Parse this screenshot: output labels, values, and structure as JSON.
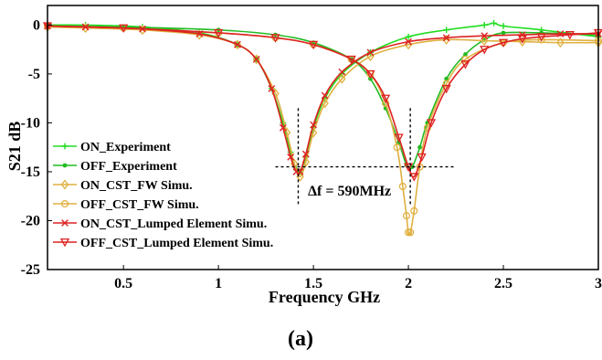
{
  "chart_data": {
    "type": "line",
    "xlabel": "Frequency GHz",
    "ylabel": "S21 dB",
    "xlim": [
      0.1,
      3.0
    ],
    "ylim": [
      -25,
      2
    ],
    "xticks": [
      "0.5",
      "1",
      "1.5",
      "2",
      "2.5",
      "3"
    ],
    "xtick_values": [
      0.5,
      1,
      1.5,
      2,
      2.5,
      3
    ],
    "yticks": [
      "0",
      "-5",
      "-10",
      "-15",
      "-20",
      "-25"
    ],
    "ytick_values": [
      0,
      -5,
      -10,
      -15,
      -20,
      -25
    ],
    "grid": false,
    "legend_position": "lower-left",
    "annotation": "Δf = 590MHz",
    "caption": "(a)",
    "series": [
      {
        "name": "ON_Experiment",
        "color": "#22dd22",
        "marker": "plus",
        "x": [
          0.1,
          0.3,
          0.6,
          0.9,
          1.1,
          1.2,
          1.28,
          1.34,
          1.38,
          1.41,
          1.43,
          1.46,
          1.5,
          1.56,
          1.65,
          1.8,
          2.0,
          2.2,
          2.4,
          2.45,
          2.5,
          2.7,
          3.0
        ],
        "y": [
          0.0,
          0.0,
          -0.2,
          -0.8,
          -2.0,
          -3.5,
          -6.5,
          -10.0,
          -13.0,
          -14.8,
          -15.0,
          -13.5,
          -10.5,
          -7.5,
          -5.0,
          -2.8,
          -1.2,
          -0.5,
          0.0,
          0.2,
          -0.1,
          -0.5,
          -1.2
        ]
      },
      {
        "name": "OFF_Experiment",
        "color": "#22bb22",
        "marker": "dot",
        "x": [
          0.1,
          0.5,
          1.0,
          1.3,
          1.5,
          1.7,
          1.8,
          1.88,
          1.95,
          1.99,
          2.02,
          2.06,
          2.1,
          2.2,
          2.3,
          2.4,
          2.5,
          2.7,
          3.0
        ],
        "y": [
          -0.1,
          -0.2,
          -0.5,
          -1.0,
          -1.8,
          -3.5,
          -5.5,
          -8.5,
          -12.0,
          -14.3,
          -14.5,
          -12.5,
          -10.0,
          -5.5,
          -3.0,
          -1.5,
          -0.8,
          -0.8,
          -1.0
        ]
      },
      {
        "name": "ON_CST_FW Simu.",
        "color": "#e0b040",
        "marker": "diamond",
        "x": [
          0.1,
          0.3,
          0.6,
          0.9,
          1.1,
          1.2,
          1.3,
          1.36,
          1.4,
          1.43,
          1.46,
          1.5,
          1.56,
          1.65,
          1.8,
          2.0,
          2.2,
          2.4,
          2.6,
          2.8,
          3.0
        ],
        "y": [
          -0.2,
          -0.3,
          -0.5,
          -1.0,
          -2.0,
          -3.5,
          -7.0,
          -11.0,
          -14.2,
          -15.5,
          -14.0,
          -11.0,
          -8.0,
          -5.5,
          -3.2,
          -2.0,
          -1.5,
          -1.6,
          -1.7,
          -1.8,
          -1.8
        ]
      },
      {
        "name": "OFF_CST_FW Simu.",
        "color": "#e0b040",
        "marker": "circle",
        "x": [
          0.1,
          0.5,
          1.0,
          1.3,
          1.5,
          1.7,
          1.8,
          1.88,
          1.94,
          1.97,
          1.99,
          2.0,
          2.01,
          2.03,
          2.06,
          2.1,
          2.2,
          2.3,
          2.5,
          2.7,
          3.0
        ],
        "y": [
          -0.1,
          -0.3,
          -0.8,
          -1.3,
          -2.0,
          -3.5,
          -5.0,
          -8.0,
          -12.5,
          -16.5,
          -19.5,
          -21.2,
          -21.2,
          -19.0,
          -14.5,
          -10.5,
          -6.0,
          -3.5,
          -1.8,
          -1.5,
          -1.6
        ]
      },
      {
        "name": "ON_CST_Lumped Element Simu.",
        "color": "#dd2222",
        "marker": "cross",
        "x": [
          0.1,
          0.3,
          0.6,
          0.9,
          1.1,
          1.2,
          1.28,
          1.34,
          1.38,
          1.41,
          1.43,
          1.46,
          1.5,
          1.56,
          1.65,
          1.8,
          2.0,
          2.2,
          2.4,
          2.6,
          2.8,
          3.0
        ],
        "y": [
          -0.1,
          -0.2,
          -0.4,
          -0.9,
          -2.0,
          -3.5,
          -6.5,
          -10.5,
          -13.5,
          -15.0,
          -15.0,
          -13.2,
          -10.2,
          -7.2,
          -4.8,
          -2.8,
          -1.7,
          -1.3,
          -1.1,
          -1.0,
          -0.9,
          -0.9
        ]
      },
      {
        "name": "OFF_CST_Lumped Element Simu.",
        "color": "#dd2222",
        "marker": "triangle-down",
        "x": [
          0.1,
          0.5,
          1.0,
          1.3,
          1.5,
          1.7,
          1.8,
          1.88,
          1.95,
          2.0,
          2.03,
          2.07,
          2.12,
          2.2,
          2.3,
          2.4,
          2.5,
          2.6,
          2.7,
          2.85,
          3.0
        ],
        "y": [
          -0.1,
          -0.3,
          -0.8,
          -1.3,
          -2.0,
          -3.5,
          -5.0,
          -7.5,
          -11.5,
          -14.5,
          -15.5,
          -13.5,
          -10.0,
          -6.5,
          -4.0,
          -2.5,
          -1.8,
          -1.4,
          -1.2,
          -1.0,
          -0.8
        ]
      }
    ],
    "guides": {
      "horizontal_y": -14.5,
      "horizontal_x": [
        1.3,
        2.25
      ],
      "vertical_1_x": 1.42,
      "vertical_1_y": [
        -8.5,
        -18.5
      ],
      "vertical_2_x": 2.01,
      "vertical_2_y": [
        -8.5,
        -18.5
      ]
    }
  }
}
